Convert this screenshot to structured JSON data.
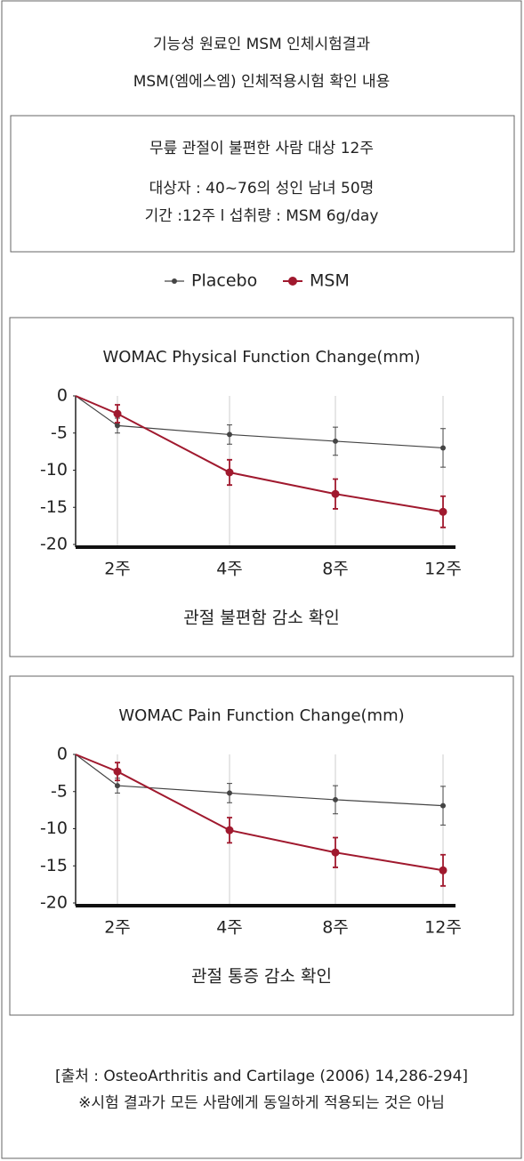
{
  "header": {
    "lines": [
      "기능성 원료인 MSM 인체시험결과",
      "MSM(엠에스엠) 인체적용시험 확인 내용"
    ]
  },
  "info": {
    "title": "무릎 관절이 불편한 사람 대상 12주",
    "lines": [
      "대상자 : 40~76의 성인 남녀 50명",
      "기간 :12주 l 섭취량 : MSM 6g/day"
    ]
  },
  "chart_data": [
    {
      "type": "line",
      "title": "WOMAC Physical Function Change(mm)",
      "x_label": "관절 불편함 감소 확인",
      "categories": [
        null,
        "2주",
        "4주",
        "8주",
        "12주"
      ],
      "series": [
        {
          "name": "Placebo",
          "color": "#444444",
          "values": [
            0,
            -4,
            -5.2,
            -6.1,
            -7
          ],
          "errors": [
            null,
            1,
            1.3,
            1.9,
            2.6
          ]
        },
        {
          "name": "MSM",
          "color": "#a0192e",
          "values": [
            0,
            -2.4,
            -10.3,
            -13.2,
            -15.6
          ],
          "errors": [
            null,
            1.2,
            1.7,
            2,
            2.1
          ]
        }
      ],
      "ylim": [
        -20,
        0
      ],
      "yticks": [
        0,
        -5,
        -10,
        -15,
        -20
      ],
      "grid": true
    },
    {
      "type": "line",
      "title": "WOMAC Pain Function Change(mm)",
      "x_label": "관절 통증 감소 확인",
      "categories": [
        null,
        "2주",
        "4주",
        "8주",
        "12주"
      ],
      "series": [
        {
          "name": "Placebo",
          "color": "#444444",
          "values": [
            0,
            -4.2,
            -5.2,
            -6.1,
            -6.9
          ],
          "errors": [
            null,
            1,
            1.3,
            1.9,
            2.6
          ]
        },
        {
          "name": "MSM",
          "color": "#a0192e",
          "values": [
            0,
            -2.3,
            -10.2,
            -13.2,
            -15.6
          ],
          "errors": [
            null,
            1.2,
            1.7,
            2,
            2.1
          ]
        }
      ],
      "ylim": [
        -20,
        0
      ],
      "yticks": [
        0,
        -5,
        -10,
        -15,
        -20
      ],
      "grid": true
    }
  ],
  "footer": {
    "lines": [
      "[출처 : OsteoArthritis and Cartilage (2006) 14,286-294]",
      "※시험 결과가 모든 사람에게 동일하게 적용되는 것은 아님"
    ]
  }
}
